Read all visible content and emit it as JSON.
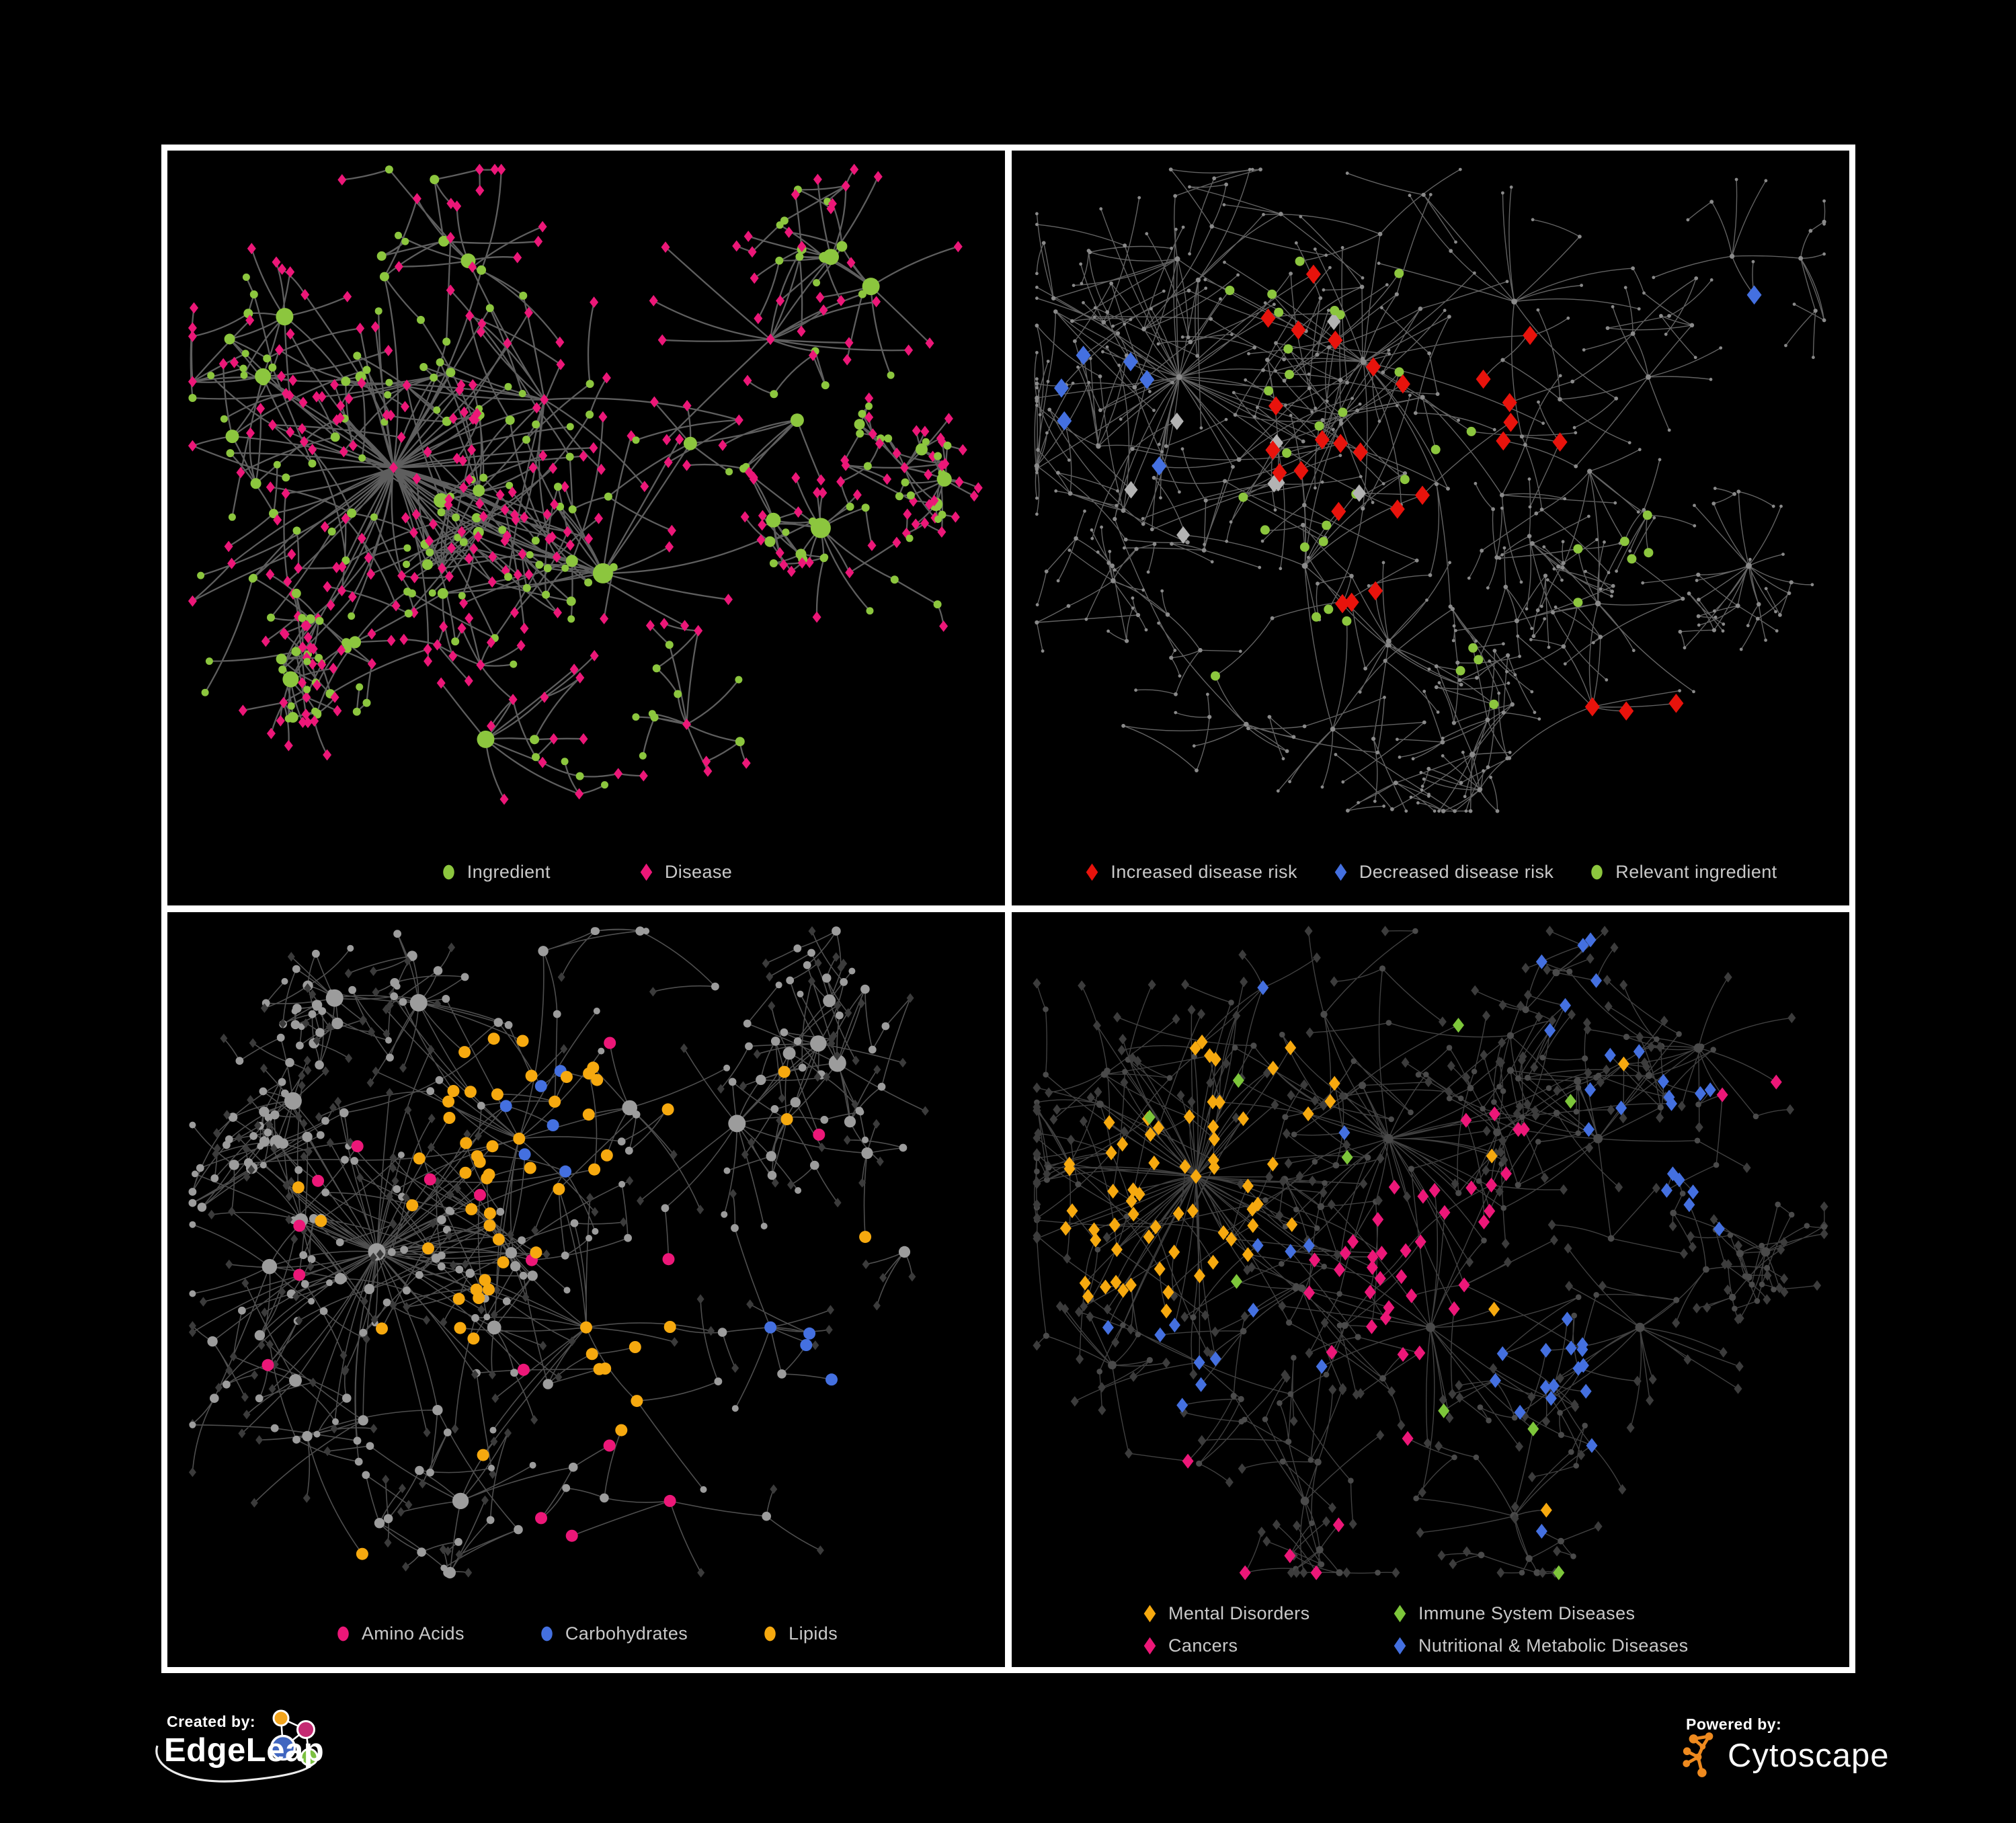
{
  "page": {
    "background": "#000000",
    "panel_border_color": "#FFFFFF",
    "legend_text_color": "#C9C9C9"
  },
  "footer": {
    "created_by": {
      "label": "Created by:",
      "brand": "EdgeLeap"
    },
    "powered_by": {
      "label": "Powered by:",
      "brand": "Cytoscape"
    },
    "edgeleap_colors": {
      "blue": "#4066C0",
      "orange": "#F2A41C",
      "pink": "#C42A72",
      "green": "#7CC142"
    },
    "cytoscape_orange": "#EE8A1F"
  },
  "chart_data": [
    {
      "type": "network",
      "id": "ingredient-disease-network",
      "legend": {
        "layout": "row",
        "gap": 130,
        "items": [
          {
            "label": "Ingredient",
            "shape": "circle",
            "color": "#8CC63E"
          },
          {
            "label": "Disease",
            "shape": "diamond",
            "color": "#EC1778"
          }
        ]
      },
      "gen": {
        "seed": 11,
        "nodes": 560,
        "hub_bias": 2.4,
        "decay": 0.5,
        "extra_links": 45,
        "clusters": [
          [
            0.27,
            0.42,
            0.3
          ],
          [
            0.45,
            0.33,
            0.27
          ],
          [
            0.52,
            0.56,
            0.24
          ],
          [
            0.72,
            0.25,
            0.2
          ],
          [
            0.84,
            0.18,
            0.13
          ],
          [
            0.78,
            0.5,
            0.13
          ],
          [
            0.38,
            0.78,
            0.16
          ],
          [
            0.62,
            0.76,
            0.13
          ],
          [
            0.33,
            0.12,
            0.14
          ],
          [
            0.14,
            0.22,
            0.13
          ],
          [
            0.88,
            0.42,
            0.09
          ],
          [
            0.18,
            0.62,
            0.12
          ]
        ],
        "edge": {
          "color": "#6E6E6E",
          "width": 2.3,
          "opacity": 0.85
        },
        "inner": {
          "shape": "circle",
          "color": "#8CC63E",
          "r": 5,
          "grow": 1.0,
          "rmax": 15
        },
        "inner_alt": {
          "frac": 0.3,
          "shape": "diamond",
          "color": "#EC1778",
          "r": 6.5
        },
        "leaf": {
          "shape": "diamond",
          "color": "#EC1778",
          "r": 6.5
        },
        "leaf_alt": {
          "frac": 0.2,
          "shape": "circle",
          "color": "#8CC63E",
          "r": 5.5
        },
        "specials": []
      }
    },
    {
      "type": "network",
      "id": "disease-risk-network",
      "legend": {
        "layout": "row",
        "gap": 52,
        "items": [
          {
            "label": "Increased disease risk",
            "shape": "diamond",
            "color": "#E8130C"
          },
          {
            "label": "Decreased disease risk",
            "shape": "diamond",
            "color": "#4470E0"
          },
          {
            "label": "Relevant ingredient",
            "shape": "circle",
            "color": "#8CC63E"
          }
        ]
      },
      "gen": {
        "seed": 29,
        "nodes": 640,
        "hub_bias": 2.0,
        "decay": 0.32,
        "extra_links": 25,
        "clusters": [
          [
            0.2,
            0.3,
            0.26
          ],
          [
            0.42,
            0.28,
            0.26
          ],
          [
            0.35,
            0.55,
            0.22
          ],
          [
            0.6,
            0.2,
            0.2
          ],
          [
            0.76,
            0.3,
            0.18
          ],
          [
            0.7,
            0.6,
            0.18
          ],
          [
            0.28,
            0.76,
            0.18
          ],
          [
            0.55,
            0.8,
            0.14
          ],
          [
            0.86,
            0.14,
            0.12
          ],
          [
            0.88,
            0.55,
            0.11
          ],
          [
            0.12,
            0.55,
            0.12
          ],
          [
            0.45,
            0.65,
            0.14
          ]
        ],
        "edge": {
          "color": "#7A7A7A",
          "width": 1.4,
          "opacity": 0.8
        },
        "inner": {
          "shape": "circle",
          "color": "#8A8A8A",
          "r": 2.8,
          "grow": 0.15,
          "rmax": 4.5
        },
        "leaf": {
          "shape": "circle",
          "color": "#8A8A8A",
          "r": 2.4
        },
        "specials": [
          {
            "shape": "diamond",
            "color": "#E8130C",
            "size": 11,
            "count": 18,
            "cx": 0.42,
            "cy": 0.33,
            "r": 0.2
          },
          {
            "shape": "diamond",
            "color": "#E8130C",
            "size": 11,
            "count": 4,
            "cx": 0.63,
            "cy": 0.3,
            "r": 0.1
          },
          {
            "shape": "diamond",
            "color": "#E8130C",
            "size": 11,
            "count": 3,
            "cx": 0.38,
            "cy": 0.66,
            "r": 0.1
          },
          {
            "shape": "diamond",
            "color": "#E8130C",
            "size": 11,
            "count": 3,
            "cx": 0.72,
            "cy": 0.78,
            "r": 0.1
          },
          {
            "shape": "diamond",
            "color": "#4470E0",
            "size": 11,
            "count": 6,
            "cx": 0.14,
            "cy": 0.34,
            "r": 0.1
          },
          {
            "shape": "diamond",
            "color": "#4470E0",
            "size": 11,
            "count": 2,
            "cx": 0.92,
            "cy": 0.17,
            "r": 0.05
          },
          {
            "shape": "diamond",
            "color": "#B3B3B3",
            "size": 10,
            "count": 8,
            "cx": 0.33,
            "cy": 0.4,
            "r": 0.22
          },
          {
            "shape": "circle",
            "color": "#8CC63E",
            "size": 7,
            "count": 22,
            "cx": 0.4,
            "cy": 0.33,
            "r": 0.22
          },
          {
            "shape": "circle",
            "color": "#8CC63E",
            "size": 7,
            "count": 6,
            "cx": 0.74,
            "cy": 0.46,
            "r": 0.16
          },
          {
            "shape": "circle",
            "color": "#8CC63E",
            "size": 7,
            "count": 5,
            "cx": 0.3,
            "cy": 0.62,
            "r": 0.12
          },
          {
            "shape": "circle",
            "color": "#8CC63E",
            "size": 7,
            "count": 4,
            "cx": 0.6,
            "cy": 0.75,
            "r": 0.12
          }
        ]
      }
    },
    {
      "type": "network",
      "id": "compound-class-network",
      "legend": {
        "layout": "row",
        "gap": 110,
        "items": [
          {
            "label": "Amino Acids",
            "shape": "circle",
            "color": "#EC1778"
          },
          {
            "label": "Carbohydrates",
            "shape": "circle",
            "color": "#4470E0"
          },
          {
            "label": "Lipids",
            "shape": "circle",
            "color": "#F6A90F"
          }
        ]
      },
      "gen": {
        "seed": 41,
        "nodes": 560,
        "hub_bias": 2.3,
        "decay": 0.45,
        "extra_links": 40,
        "clusters": [
          [
            0.25,
            0.45,
            0.28
          ],
          [
            0.42,
            0.3,
            0.26
          ],
          [
            0.5,
            0.55,
            0.24
          ],
          [
            0.68,
            0.28,
            0.18
          ],
          [
            0.8,
            0.2,
            0.14
          ],
          [
            0.72,
            0.55,
            0.16
          ],
          [
            0.35,
            0.78,
            0.17
          ],
          [
            0.6,
            0.78,
            0.14
          ],
          [
            0.3,
            0.12,
            0.15
          ],
          [
            0.12,
            0.6,
            0.12
          ],
          [
            0.88,
            0.45,
            0.1
          ],
          [
            0.15,
            0.25,
            0.12
          ]
        ],
        "edge": {
          "color": "#9C9C9C",
          "width": 1.6,
          "opacity": 0.5
        },
        "inner": {
          "shape": "circle",
          "color": "#9C9C9C",
          "r": 5,
          "grow": 0.9,
          "rmax": 13
        },
        "leaf": {
          "shape": "diamond",
          "color": "#3B3B3B",
          "r": 5.5
        },
        "leaf_alt": {
          "frac": 0.15,
          "shape": "circle",
          "color": "#9C9C9C",
          "r": 5
        },
        "specials": [
          {
            "shape": "circle",
            "color": "#F6A90F",
            "size": 9,
            "count": 26,
            "cx": 0.43,
            "cy": 0.27,
            "r": 0.12
          },
          {
            "shape": "circle",
            "color": "#F6A90F",
            "size": 9,
            "count": 12,
            "cx": 0.38,
            "cy": 0.48,
            "r": 0.1
          },
          {
            "shape": "circle",
            "color": "#F6A90F",
            "size": 9,
            "count": 10,
            "cx": 0.55,
            "cy": 0.62,
            "r": 0.09
          },
          {
            "shape": "circle",
            "color": "#F6A90F",
            "size": 9,
            "count": 14,
            "cx": 0.5,
            "cy": 0.5,
            "r": 0.48
          },
          {
            "shape": "circle",
            "color": "#4470E0",
            "size": 9,
            "count": 9,
            "cx": 0.46,
            "cy": 0.27,
            "r": 0.09
          },
          {
            "shape": "circle",
            "color": "#4470E0",
            "size": 9,
            "count": 4,
            "cx": 0.8,
            "cy": 0.62,
            "r": 0.12
          },
          {
            "shape": "circle",
            "color": "#EC1778",
            "size": 9,
            "count": 16,
            "cx": 0.5,
            "cy": 0.55,
            "r": 0.45
          }
        ]
      }
    },
    {
      "type": "network",
      "id": "disease-class-network",
      "legend": {
        "layout": "grid",
        "items": [
          {
            "label": "Mental Disorders",
            "shape": "diamond",
            "color": "#F6A90F"
          },
          {
            "label": "Immune System Diseases",
            "shape": "diamond",
            "color": "#7DC63A"
          },
          {
            "label": "Cancers",
            "shape": "diamond",
            "color": "#EC1778"
          },
          {
            "label": "Nutritional & Metabolic Diseases",
            "shape": "diamond",
            "color": "#4470E0"
          }
        ]
      },
      "gen": {
        "seed": 57,
        "nodes": 640,
        "hub_bias": 2.2,
        "decay": 0.4,
        "extra_links": 35,
        "clusters": [
          [
            0.22,
            0.35,
            0.26
          ],
          [
            0.45,
            0.3,
            0.25
          ],
          [
            0.5,
            0.55,
            0.24
          ],
          [
            0.7,
            0.3,
            0.18
          ],
          [
            0.82,
            0.18,
            0.14
          ],
          [
            0.75,
            0.55,
            0.16
          ],
          [
            0.35,
            0.78,
            0.17
          ],
          [
            0.6,
            0.8,
            0.14
          ],
          [
            0.3,
            0.1,
            0.14
          ],
          [
            0.9,
            0.45,
            0.1
          ],
          [
            0.12,
            0.6,
            0.12
          ],
          [
            0.65,
            0.08,
            0.12
          ]
        ],
        "edge": {
          "color": "#8E8E8E",
          "width": 1.4,
          "opacity": 0.45
        },
        "inner": {
          "shape": "circle",
          "color": "#4A4A4A",
          "r": 4,
          "grow": 0.3,
          "rmax": 7
        },
        "leaf": {
          "shape": "diamond",
          "color": "#3C3C3C",
          "r": 6
        },
        "specials": [
          {
            "shape": "diamond",
            "color": "#F6A90F",
            "size": 8.5,
            "count": 50,
            "cx": 0.17,
            "cy": 0.4,
            "r": 0.14
          },
          {
            "shape": "diamond",
            "color": "#F6A90F",
            "size": 8.5,
            "count": 10,
            "cx": 0.3,
            "cy": 0.22,
            "r": 0.1
          },
          {
            "shape": "diamond",
            "color": "#F6A90F",
            "size": 8.5,
            "count": 8,
            "cx": 0.5,
            "cy": 0.5,
            "r": 0.48
          },
          {
            "shape": "diamond",
            "color": "#EC1778",
            "size": 8.5,
            "count": 28,
            "cx": 0.47,
            "cy": 0.5,
            "r": 0.14
          },
          {
            "shape": "diamond",
            "color": "#EC1778",
            "size": 8.5,
            "count": 8,
            "cx": 0.58,
            "cy": 0.33,
            "r": 0.1
          },
          {
            "shape": "diamond",
            "color": "#EC1778",
            "size": 8.5,
            "count": 4,
            "cx": 0.9,
            "cy": 0.22,
            "r": 0.07
          },
          {
            "shape": "diamond",
            "color": "#EC1778",
            "size": 8.5,
            "count": 6,
            "cx": 0.3,
            "cy": 0.75,
            "r": 0.2
          },
          {
            "shape": "diamond",
            "color": "#4470E0",
            "size": 8.5,
            "count": 14,
            "cx": 0.62,
            "cy": 0.57,
            "r": 0.1
          },
          {
            "shape": "diamond",
            "color": "#4470E0",
            "size": 8.5,
            "count": 12,
            "cx": 0.82,
            "cy": 0.32,
            "r": 0.12
          },
          {
            "shape": "diamond",
            "color": "#4470E0",
            "size": 8.5,
            "count": 8,
            "cx": 0.72,
            "cy": 0.1,
            "r": 0.12
          },
          {
            "shape": "diamond",
            "color": "#4470E0",
            "size": 8.5,
            "count": 10,
            "cx": 0.25,
            "cy": 0.6,
            "r": 0.18
          },
          {
            "shape": "diamond",
            "color": "#4470E0",
            "size": 8.5,
            "count": 8,
            "cx": 0.5,
            "cy": 0.5,
            "r": 0.48
          },
          {
            "shape": "diamond",
            "color": "#7DC63A",
            "size": 8.5,
            "count": 9,
            "cx": 0.5,
            "cy": 0.5,
            "r": 0.45
          }
        ]
      }
    }
  ]
}
